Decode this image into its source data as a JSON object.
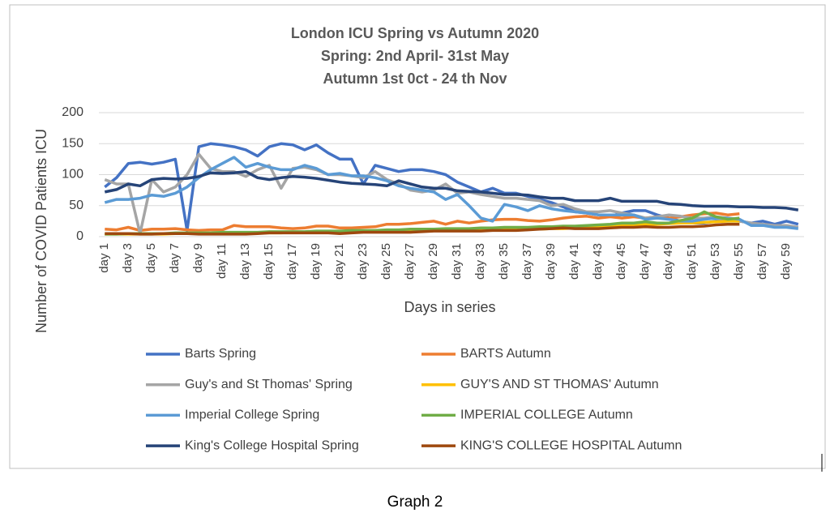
{
  "caption": "Graph 2",
  "chart_data": {
    "type": "line",
    "title": [
      "London ICU Spring vs Autumn 2020",
      "Spring: 2nd April- 31st May",
      "Autumn 1st 0ct - 24 th Nov"
    ],
    "xlabel": "Days in series",
    "ylabel": "Number of COVID Patients ICU",
    "categories": [
      "day 1",
      null,
      "day 3",
      null,
      "day 5",
      null,
      "day 7",
      null,
      "day 9",
      null,
      "day 11",
      null,
      "day 13",
      null,
      "day 15",
      null,
      "day 17",
      null,
      "day 19",
      null,
      "day 21",
      null,
      "day 23",
      null,
      "day 25",
      null,
      "day 27",
      null,
      "day 29",
      null,
      "day 31",
      null,
      "day 33",
      null,
      "day 35",
      null,
      "day 37",
      null,
      "day 39",
      null,
      "day 41",
      null,
      "day 43",
      null,
      "day 45",
      null,
      "day 47",
      null,
      "day 49",
      null,
      "day 51",
      null,
      "day 53",
      null,
      "day 55",
      null,
      "day 57",
      null,
      "day 59",
      null
    ],
    "ylim": [
      0,
      200
    ],
    "yticks": [
      0,
      50,
      100,
      150,
      200
    ],
    "grid": true,
    "legend": "bottom",
    "series": [
      {
        "name": "Barts Spring",
        "color": "#4472c4",
        "values": [
          80,
          95,
          118,
          120,
          117,
          120,
          125,
          10,
          145,
          150,
          148,
          145,
          140,
          130,
          145,
          150,
          148,
          140,
          148,
          135,
          125,
          125,
          85,
          115,
          110,
          105,
          108,
          108,
          105,
          100,
          88,
          80,
          72,
          78,
          70,
          70,
          65,
          60,
          55,
          48,
          40,
          38,
          35,
          33,
          38,
          42,
          42,
          35,
          30,
          25,
          22,
          22,
          25,
          25,
          25,
          22,
          25,
          20,
          25,
          20
        ]
      },
      {
        "name": "BARTS Autumn",
        "color": "#ed7d31",
        "values": [
          12,
          11,
          15,
          10,
          12,
          12,
          13,
          11,
          10,
          11,
          11,
          18,
          16,
          16,
          16,
          14,
          13,
          14,
          17,
          17,
          14,
          14,
          15,
          16,
          20,
          20,
          21,
          23,
          25,
          20,
          25,
          22,
          25,
          27,
          28,
          28,
          26,
          25,
          27,
          30,
          32,
          33,
          30,
          32,
          30,
          32,
          30,
          32,
          30,
          32,
          35,
          37,
          38,
          35,
          37,
          null,
          null,
          null,
          null,
          null
        ]
      },
      {
        "name": "Guy's and St Thomas' Spring",
        "color": "#a5a5a5",
        "values": [
          92,
          85,
          85,
          5,
          92,
          72,
          80,
          100,
          133,
          110,
          105,
          105,
          97,
          108,
          115,
          78,
          110,
          112,
          108,
          100,
          100,
          98,
          95,
          105,
          92,
          85,
          75,
          72,
          75,
          85,
          70,
          72,
          68,
          65,
          62,
          62,
          60,
          58,
          50,
          52,
          45,
          40,
          40,
          42,
          38,
          35,
          30,
          32,
          35,
          33,
          30,
          30,
          32,
          30,
          25,
          22,
          20,
          18,
          18,
          15
        ]
      },
      {
        "name": "GUY'S AND ST THOMAS' Autumn",
        "color": "#ffc000",
        "values": [
          4,
          4,
          4,
          4,
          4,
          4,
          5,
          5,
          5,
          5,
          5,
          5,
          5,
          6,
          6,
          6,
          7,
          7,
          7,
          8,
          8,
          8,
          8,
          9,
          9,
          9,
          9,
          10,
          10,
          10,
          10,
          11,
          11,
          12,
          12,
          12,
          12,
          12,
          13,
          13,
          14,
          15,
          16,
          17,
          18,
          19,
          20,
          20,
          21,
          22,
          22,
          23,
          24,
          25,
          25,
          null,
          null,
          null,
          null,
          null
        ]
      },
      {
        "name": "Imperial College Spring",
        "color": "#5b9bd5",
        "values": [
          55,
          60,
          60,
          62,
          67,
          65,
          70,
          80,
          95,
          108,
          118,
          128,
          112,
          118,
          112,
          108,
          108,
          115,
          110,
          100,
          102,
          98,
          98,
          95,
          90,
          82,
          78,
          75,
          72,
          60,
          68,
          50,
          30,
          25,
          52,
          48,
          42,
          50,
          45,
          42,
          40,
          38,
          35,
          35,
          35,
          35,
          28,
          30,
          28,
          25,
          25,
          28,
          30,
          30,
          28,
          18,
          18,
          15,
          15,
          13
        ]
      },
      {
        "name": "IMPERIAL COLLEGE Autumn",
        "color": "#70ad47",
        "values": [
          4,
          4,
          5,
          5,
          5,
          5,
          6,
          6,
          6,
          6,
          7,
          7,
          7,
          7,
          8,
          8,
          8,
          8,
          9,
          9,
          9,
          10,
          10,
          10,
          11,
          11,
          12,
          12,
          12,
          13,
          13,
          13,
          14,
          14,
          15,
          15,
          15,
          16,
          16,
          17,
          17,
          18,
          19,
          20,
          22,
          22,
          24,
          22,
          22,
          26,
          30,
          40,
          32,
          28,
          30,
          null,
          null,
          null,
          null,
          null
        ]
      },
      {
        "name": "King's College Hospital Spring",
        "color": "#264478",
        "values": [
          72,
          76,
          85,
          82,
          92,
          94,
          93,
          94,
          97,
          103,
          102,
          103,
          105,
          95,
          92,
          95,
          97,
          96,
          94,
          91,
          88,
          86,
          85,
          84,
          82,
          90,
          85,
          80,
          78,
          78,
          74,
          73,
          72,
          70,
          68,
          68,
          67,
          64,
          62,
          62,
          58,
          58,
          58,
          62,
          57,
          57,
          57,
          57,
          53,
          52,
          50,
          49,
          49,
          49,
          48,
          48,
          47,
          47,
          46,
          43
        ]
      },
      {
        "name": "KING'S COLLEGE HOSPITAL Autumn",
        "color": "#9e480e",
        "values": [
          5,
          5,
          5,
          4,
          4,
          5,
          5,
          5,
          4,
          4,
          4,
          4,
          4,
          5,
          6,
          6,
          6,
          6,
          6,
          6,
          5,
          6,
          7,
          7,
          7,
          7,
          7,
          8,
          9,
          9,
          9,
          9,
          9,
          10,
          10,
          10,
          11,
          12,
          13,
          14,
          13,
          13,
          13,
          14,
          15,
          15,
          16,
          15,
          15,
          16,
          16,
          17,
          19,
          20,
          20,
          null,
          null,
          null,
          null,
          null
        ]
      }
    ]
  }
}
